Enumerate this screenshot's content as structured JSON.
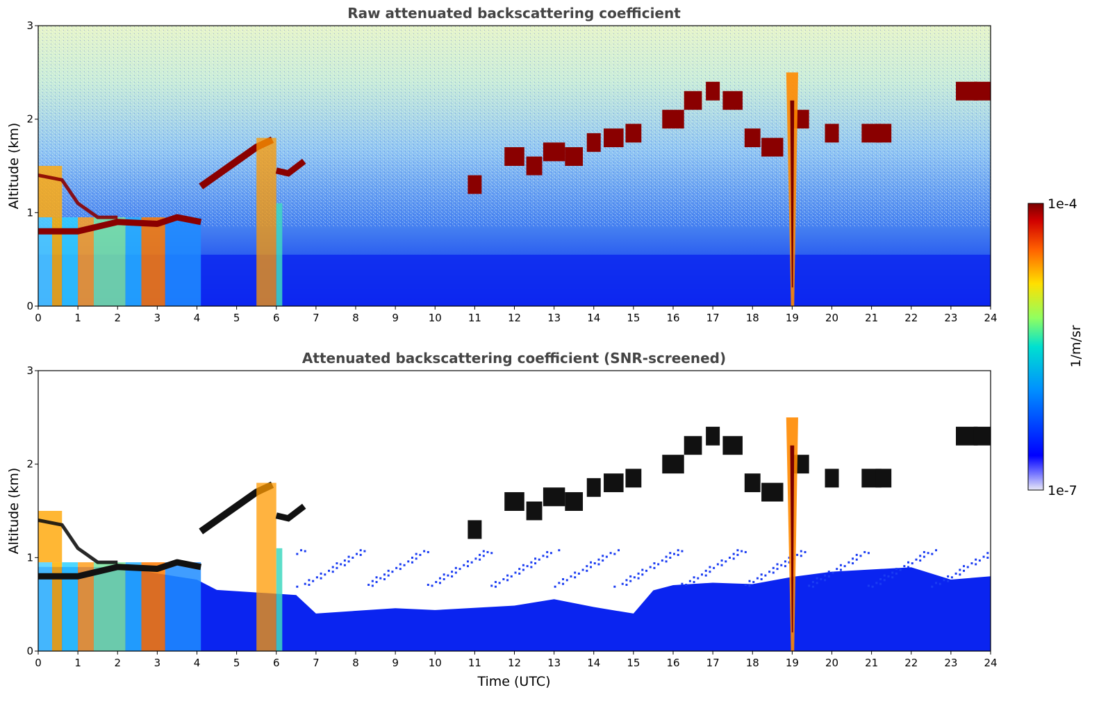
{
  "chart_data": [
    {
      "type": "heatmap",
      "title": "Raw attenuated backscattering coefficient",
      "xlabel": "",
      "ylabel": "Altitude (km)",
      "xlim": [
        0,
        24
      ],
      "ylim": [
        0,
        3
      ],
      "xticks": [
        "0",
        "1",
        "2",
        "3",
        "4",
        "5",
        "6",
        "7",
        "8",
        "9",
        "10",
        "11",
        "12",
        "13",
        "14",
        "15",
        "16",
        "17",
        "18",
        "19",
        "20",
        "21",
        "22",
        "23",
        "24"
      ],
      "yticks": [
        "0",
        "1",
        "2",
        "3"
      ],
      "features": [
        {
          "name": "boundary layer top",
          "time": [
            0,
            4.1
          ],
          "altitude_km": [
            0.8,
            0.95,
            0.82,
            0.9,
            0.95
          ]
        },
        {
          "name": "rising aerosol layer",
          "time": [
            4.1,
            6.7
          ],
          "altitude_km": [
            1.25,
            1.5,
            1.8,
            1.45,
            1.55
          ]
        },
        {
          "name": "cloud layer",
          "time": [
            10.7,
            21.5
          ],
          "altitude_km": [
            1.1,
            1.6,
            2.2,
            1.7,
            1.85
          ]
        },
        {
          "name": "precipitation",
          "time": [
            19.0,
            19.0
          ],
          "altitude_km": [
            0,
            2.5
          ]
        }
      ]
    },
    {
      "type": "heatmap",
      "title": "Attenuated backscattering coefficient (SNR-screened)",
      "xlabel": "Time (UTC)",
      "ylabel": "Altitude (km)",
      "xlim": [
        0,
        24
      ],
      "ylim": [
        0,
        3
      ],
      "xticks": [
        "0",
        "1",
        "2",
        "3",
        "4",
        "5",
        "6",
        "7",
        "8",
        "9",
        "10",
        "11",
        "12",
        "13",
        "14",
        "15",
        "16",
        "17",
        "18",
        "19",
        "20",
        "21",
        "22",
        "23",
        "24"
      ],
      "yticks": [
        "0",
        "1",
        "2",
        "3"
      ]
    }
  ],
  "colorbar": {
    "label": "1/m/sr",
    "max_label": "1e-4",
    "min_label": "1e-7",
    "scale": "log",
    "range": [
      1e-07,
      0.0001
    ],
    "colors": [
      "#e8e8f6",
      "#0000ff",
      "#0090ff",
      "#00e0d0",
      "#90ff60",
      "#ffe000",
      "#ff6000",
      "#d00000",
      "#7a0000"
    ]
  }
}
